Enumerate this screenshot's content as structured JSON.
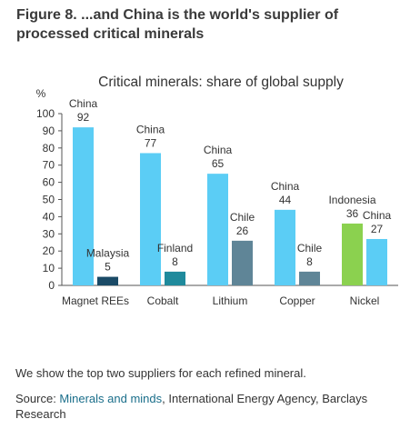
{
  "figure": {
    "title": "Figure 8. ...and China is the world's supplier of processed critical minerals",
    "note": "We show the top two suppliers for each refined mineral.",
    "source_prefix": "Source: ",
    "source_link": "Minerals and minds",
    "source_rest": ", International Energy Agency, Barclays Research"
  },
  "chart_data": {
    "type": "bar",
    "title": "Critical minerals: share of global supply",
    "ylabel": "%",
    "xlabel": "",
    "ylim": [
      0,
      100
    ],
    "yticks": [
      0,
      10,
      20,
      30,
      40,
      50,
      60,
      70,
      80,
      90,
      100
    ],
    "grid": false,
    "legend": "none",
    "categories": [
      "Magnet REEs",
      "Cobalt",
      "Lithium",
      "Copper",
      "Nickel"
    ],
    "groups": [
      {
        "category": "Magnet REEs",
        "bars": [
          {
            "supplier": "China",
            "value": 92,
            "color": "#5bcdf5"
          },
          {
            "supplier": "Malaysia",
            "value": 5,
            "color": "#1a4a66"
          }
        ]
      },
      {
        "category": "Cobalt",
        "bars": [
          {
            "supplier": "China",
            "value": 77,
            "color": "#5bcdf5"
          },
          {
            "supplier": "Finland",
            "value": 8,
            "color": "#1f8a9c"
          }
        ]
      },
      {
        "category": "Lithium",
        "bars": [
          {
            "supplier": "China",
            "value": 65,
            "color": "#5bcdf5"
          },
          {
            "supplier": "Chile",
            "value": 26,
            "color": "#5f8597"
          }
        ]
      },
      {
        "category": "Copper",
        "bars": [
          {
            "supplier": "China",
            "value": 44,
            "color": "#5bcdf5"
          },
          {
            "supplier": "Chile",
            "value": 8,
            "color": "#5f8597"
          }
        ]
      },
      {
        "category": "Nickel",
        "bars": [
          {
            "supplier": "Indonesia",
            "value": 36,
            "color": "#8bd14f"
          },
          {
            "supplier": "China",
            "value": 27,
            "color": "#5bcdf5"
          }
        ]
      }
    ]
  }
}
